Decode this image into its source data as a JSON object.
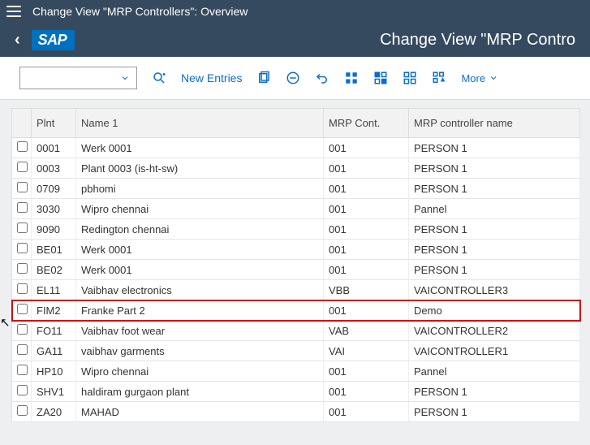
{
  "topbar": {
    "title": "Change View \"MRP Controllers\": Overview"
  },
  "header": {
    "logo": "SAP",
    "title": "Change View \"MRP Contro"
  },
  "toolbar": {
    "new_entries": "New Entries",
    "more": "More"
  },
  "table": {
    "headers": {
      "plnt": "Plnt",
      "name": "Name 1",
      "mrp": "MRP Cont.",
      "ctrl": "MRP controller name"
    },
    "rows": [
      {
        "plnt": "0001",
        "name": "Werk 0001",
        "mrp": "001",
        "ctrl": "PERSON 1",
        "hl": false
      },
      {
        "plnt": "0003",
        "name": "Plant 0003 (is-ht-sw)",
        "mrp": "001",
        "ctrl": "PERSON 1",
        "hl": false
      },
      {
        "plnt": "0709",
        "name": "pbhomi",
        "mrp": "001",
        "ctrl": "PERSON 1",
        "hl": false
      },
      {
        "plnt": "3030",
        "name": "Wipro chennai",
        "mrp": "001",
        "ctrl": "Pannel",
        "hl": false
      },
      {
        "plnt": "9090",
        "name": "Redington chennai",
        "mrp": "001",
        "ctrl": "PERSON 1",
        "hl": false
      },
      {
        "plnt": "BE01",
        "name": "Werk 0001",
        "mrp": "001",
        "ctrl": "PERSON 1",
        "hl": false
      },
      {
        "plnt": "BE02",
        "name": "Werk 0001",
        "mrp": "001",
        "ctrl": "PERSON 1",
        "hl": false
      },
      {
        "plnt": "EL11",
        "name": "Vaibhav electronics",
        "mrp": "VBB",
        "ctrl": "VAICONTROLLER3",
        "hl": false
      },
      {
        "plnt": "FIM2",
        "name": "Franke Part 2",
        "mrp": "001",
        "ctrl": "Demo",
        "hl": true
      },
      {
        "plnt": "FO11",
        "name": "Vaibhav foot wear",
        "mrp": "VAB",
        "ctrl": "VAICONTROLLER2",
        "hl": false
      },
      {
        "plnt": "GA11",
        "name": "vaibhav garments",
        "mrp": "VAI",
        "ctrl": "VAICONTROLLER1",
        "hl": false
      },
      {
        "plnt": "HP10",
        "name": "Wipro chennai",
        "mrp": "001",
        "ctrl": "Pannel",
        "hl": false
      },
      {
        "plnt": "SHV1",
        "name": "haldiram gurgaon plant",
        "mrp": "001",
        "ctrl": "PERSON 1",
        "hl": false
      },
      {
        "plnt": "ZA20",
        "name": "MAHAD",
        "mrp": "001",
        "ctrl": "PERSON 1",
        "hl": false
      }
    ]
  }
}
